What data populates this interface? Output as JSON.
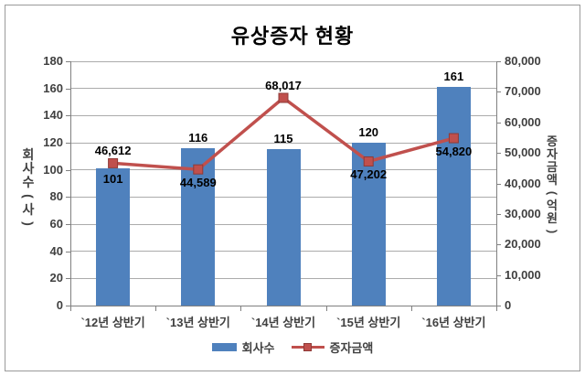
{
  "chart_data": {
    "type": "combo-bar-line",
    "title": "유상증자 현황",
    "categories": [
      "`12년 상반기",
      "`13년 상반기",
      "`14년 상반기",
      "`15년 상반기",
      "`16년 상반기"
    ],
    "series": [
      {
        "name": "회사수",
        "type": "bar",
        "axis": "left",
        "color": "#4F81BD",
        "values": [
          101,
          116,
          115,
          120,
          161
        ],
        "labels": [
          "101",
          "116",
          "115",
          "120",
          "161"
        ],
        "label_positions": [
          "inside",
          "above",
          "above",
          "above",
          "above"
        ]
      },
      {
        "name": "증자금액",
        "type": "line",
        "axis": "right",
        "color": "#C0504D",
        "marker_border": "#8E3A37",
        "values": [
          46612,
          44589,
          68017,
          47202,
          54820
        ],
        "labels": [
          "46,612",
          "44,589",
          "68,017",
          "47,202",
          "54,820"
        ],
        "label_positions": [
          "above",
          "below",
          "above",
          "below",
          "below"
        ]
      }
    ],
    "left_axis": {
      "title": "회사수(사)",
      "min": 0,
      "max": 180,
      "step": 20,
      "tick_labels": [
        "0",
        "20",
        "40",
        "60",
        "80",
        "100",
        "120",
        "140",
        "160",
        "180"
      ]
    },
    "right_axis": {
      "title": "증자금액(억원)",
      "min": 0,
      "max": 80000,
      "step": 10000,
      "tick_labels": [
        "0",
        "10,000",
        "20,000",
        "30,000",
        "40,000",
        "50,000",
        "60,000",
        "70,000",
        "80,000"
      ]
    },
    "legend": {
      "position": "bottom",
      "entries": [
        "회사수",
        "증자금액"
      ]
    },
    "grid": true,
    "colors": {
      "gridline": "#ABABAB",
      "axis_line": "#808080",
      "tick_text": "#404040",
      "data_label": "#000000",
      "frame_border": "#9A9A9A"
    }
  }
}
